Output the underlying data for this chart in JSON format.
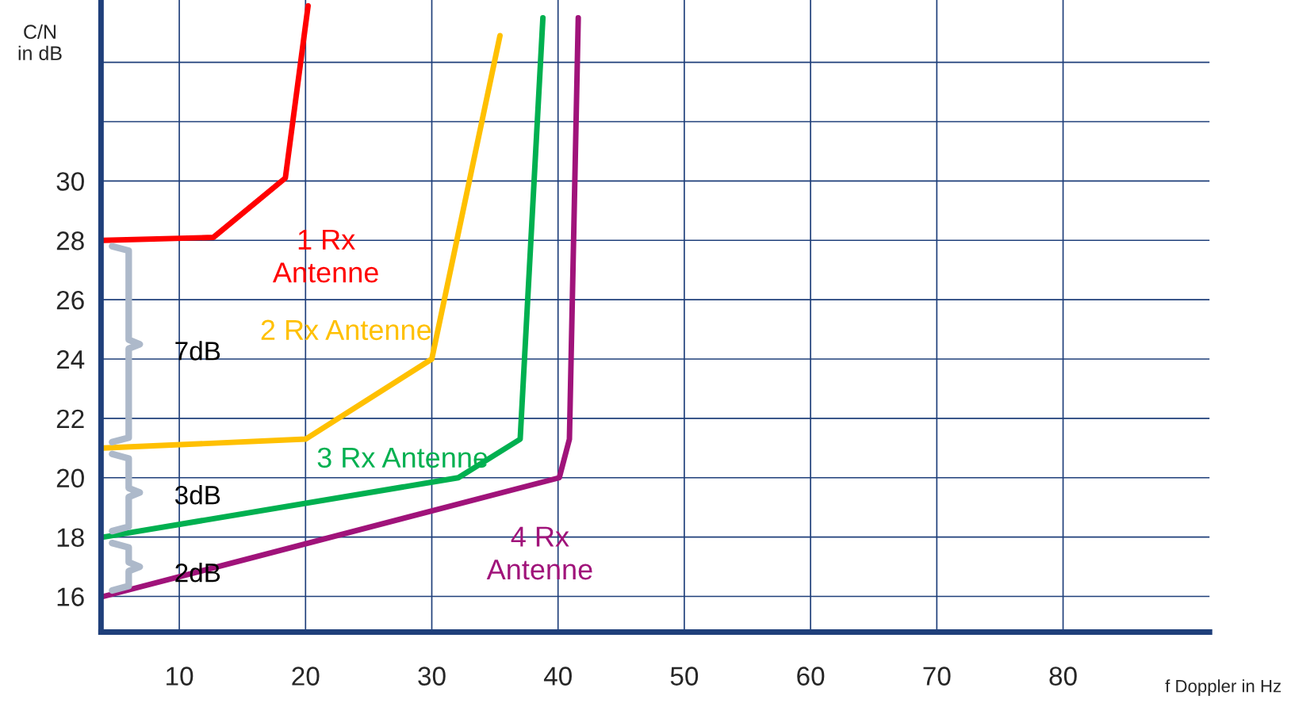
{
  "chart_data": {
    "type": "line",
    "xlabel": "f Doppler in Hz",
    "ylabel": "C/N\nin dB",
    "xlim": [
      3.8,
      91.6
    ],
    "ylim": [
      14.8,
      36.1
    ],
    "xticks": [
      10,
      20,
      30,
      40,
      50,
      60,
      70,
      80
    ],
    "yticks": [
      16,
      18,
      20,
      22,
      24,
      26,
      28,
      30,
      {
        "value": 32,
        "label": null
      },
      {
        "value": 34,
        "label": null
      }
    ],
    "grid": true,
    "legend": false,
    "marker": "none",
    "line_style": "solid",
    "series": [
      {
        "name": "1 Rx\nAntenne",
        "color": "#ff0000",
        "x": [
          4,
          12.7,
          18.4,
          20.2
        ],
        "values": [
          28,
          28.1,
          30.1,
          35.9
        ]
      },
      {
        "name": "2 Rx Antenne",
        "color": "#ffc000",
        "x": [
          4,
          20,
          30,
          35.4
        ],
        "values": [
          21,
          21.3,
          24,
          34.9
        ]
      },
      {
        "name": "3 Rx Antenne",
        "color": "#00b050",
        "x": [
          4,
          32.1,
          37,
          38.8
        ],
        "values": [
          18,
          20,
          21.3,
          35.5
        ]
      },
      {
        "name": "4 Rx\nAntenne",
        "color": "#a0137a",
        "x": [
          4,
          40.1,
          40.9,
          41.6
        ],
        "values": [
          16,
          20,
          21.3,
          35.5
        ]
      }
    ],
    "annotations": [
      "7dB",
      "3dB",
      "2dB"
    ]
  }
}
